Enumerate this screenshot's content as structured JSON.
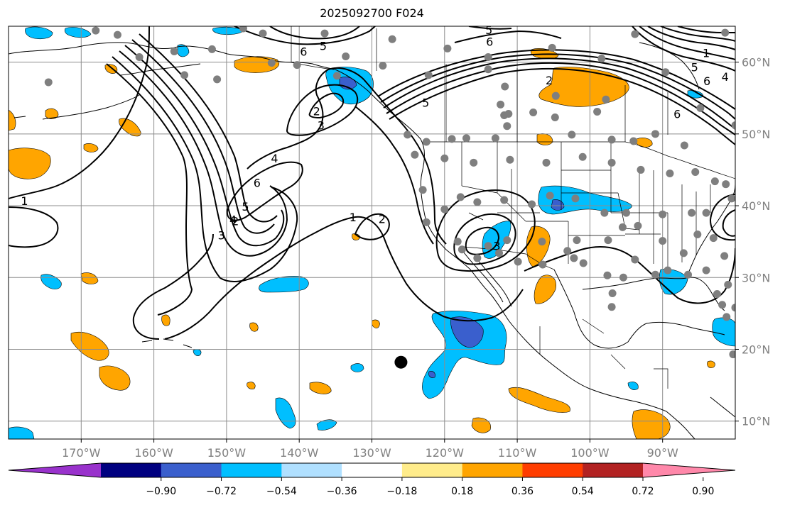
{
  "title": "2025092700 F024",
  "map": {
    "projection": "cylindrical",
    "lon_range": [
      -180,
      -80
    ],
    "lat_range": [
      7.5,
      65
    ],
    "gridlines": true,
    "lon_ticks": [
      {
        "value": -170,
        "label": "170°W"
      },
      {
        "value": -160,
        "label": "160°W"
      },
      {
        "value": -150,
        "label": "150°W"
      },
      {
        "value": -140,
        "label": "140°W"
      },
      {
        "value": -130,
        "label": "130°W"
      },
      {
        "value": -120,
        "label": "120°W"
      },
      {
        "value": -110,
        "label": "110°W"
      },
      {
        "value": -100,
        "label": "100°W"
      },
      {
        "value": -90,
        "label": "90°W"
      }
    ],
    "lat_ticks": [
      {
        "value": 10,
        "label": "10°N"
      },
      {
        "value": 20,
        "label": "20°N"
      },
      {
        "value": 30,
        "label": "30°N"
      },
      {
        "value": 40,
        "label": "40°N"
      },
      {
        "value": 50,
        "label": "50°N"
      },
      {
        "value": 60,
        "label": "60°N"
      }
    ],
    "contour_labels": [
      {
        "text": "1",
        "lon": -177.8,
        "lat": 40.7
      },
      {
        "text": "1",
        "lon": -132.6,
        "lat": 38.4
      },
      {
        "text": "2",
        "lon": -128.6,
        "lat": 38.2
      },
      {
        "text": "2",
        "lon": -148.8,
        "lat": 37.9
      },
      {
        "text": "3",
        "lon": -150.7,
        "lat": 35.9
      },
      {
        "text": "4",
        "lon": -149.1,
        "lat": 38.1
      },
      {
        "text": "5",
        "lon": -147.4,
        "lat": 39.9
      },
      {
        "text": "6",
        "lon": -145.8,
        "lat": 43.2
      },
      {
        "text": "4",
        "lon": -143.4,
        "lat": 46.6
      },
      {
        "text": "3",
        "lon": -137.0,
        "lat": 51.2
      },
      {
        "text": "2",
        "lon": -137.6,
        "lat": 53.2
      },
      {
        "text": "5",
        "lon": -122.6,
        "lat": 54.4
      },
      {
        "text": "3",
        "lon": -112.8,
        "lat": 34.4
      },
      {
        "text": "5",
        "lon": -136.7,
        "lat": 62.3
      },
      {
        "text": "6",
        "lon": -139.4,
        "lat": 61.5
      },
      {
        "text": "5",
        "lon": -113.9,
        "lat": 64.5
      },
      {
        "text": "6",
        "lon": -113.8,
        "lat": 62.9
      },
      {
        "text": "2",
        "lon": -105.6,
        "lat": 57.5
      },
      {
        "text": "1",
        "lon": -84.0,
        "lat": 61.3
      },
      {
        "text": "5",
        "lon": -85.6,
        "lat": 59.3
      },
      {
        "text": "6",
        "lon": -83.9,
        "lat": 57.4
      },
      {
        "text": "6",
        "lon": -88.0,
        "lat": 52.8
      },
      {
        "text": "4",
        "lon": -81.4,
        "lat": 58.0
      }
    ],
    "station_points": [
      [
        -174.5,
        57.2
      ],
      [
        -168.0,
        64.4
      ],
      [
        -165.0,
        63.8
      ],
      [
        -162.0,
        60.7
      ],
      [
        -157.2,
        61.5
      ],
      [
        -155.8,
        58.2
      ],
      [
        -152.0,
        61.8
      ],
      [
        -151.3,
        57.6
      ],
      [
        -147.7,
        64.7
      ],
      [
        -145.0,
        64.0
      ],
      [
        -143.8,
        59.9
      ],
      [
        -140.3,
        59.6
      ],
      [
        -134.8,
        58.1
      ],
      [
        -133.6,
        60.8
      ],
      [
        -128.5,
        59.5
      ],
      [
        -122.2,
        58.2
      ],
      [
        -119.6,
        61.9
      ],
      [
        -114.0,
        60.7
      ],
      [
        -111.7,
        56.6
      ],
      [
        -105.2,
        62.0
      ],
      [
        -93.8,
        63.9
      ],
      [
        -89.6,
        58.6
      ],
      [
        -81.4,
        64.1
      ],
      [
        -98.4,
        60.5
      ],
      [
        -112.3,
        54.1
      ],
      [
        -111.8,
        52.6
      ],
      [
        -111.2,
        52.8
      ],
      [
        -107.8,
        53.0
      ],
      [
        -104.8,
        52.3
      ],
      [
        -102.5,
        49.9
      ],
      [
        -99.0,
        53.1
      ],
      [
        -97.0,
        49.2
      ],
      [
        -94.0,
        49.0
      ],
      [
        -91.0,
        50.0
      ],
      [
        -87.0,
        48.4
      ],
      [
        -84.8,
        53.6
      ],
      [
        -80.0,
        51.2
      ],
      [
        -111.4,
        51.1
      ],
      [
        -113.0,
        49.4
      ],
      [
        -117.0,
        49.4
      ],
      [
        -119.0,
        49.3
      ],
      [
        -122.5,
        48.9
      ],
      [
        -124.1,
        47.1
      ],
      [
        -120.0,
        46.6
      ],
      [
        -116.0,
        46.0
      ],
      [
        -111.0,
        46.4
      ],
      [
        -106.0,
        46.0
      ],
      [
        -101.0,
        46.8
      ],
      [
        -97.0,
        46.0
      ],
      [
        -93.0,
        45.0
      ],
      [
        -89.0,
        44.5
      ],
      [
        -85.5,
        44.7
      ],
      [
        -82.8,
        43.4
      ],
      [
        -81.3,
        43.0
      ],
      [
        -80.5,
        41.0
      ],
      [
        -84.0,
        39.0
      ],
      [
        -86.0,
        39.0
      ],
      [
        -90.0,
        38.8
      ],
      [
        -95.0,
        39.0
      ],
      [
        -98.0,
        39.0
      ],
      [
        -102.0,
        41.0
      ],
      [
        -105.5,
        41.4
      ],
      [
        -108.0,
        40.2
      ],
      [
        -111.8,
        40.8
      ],
      [
        -115.5,
        40.5
      ],
      [
        -117.8,
        41.2
      ],
      [
        -120.0,
        39.5
      ],
      [
        -123.0,
        42.2
      ],
      [
        -122.5,
        37.7
      ],
      [
        -117.6,
        33.9
      ],
      [
        -114.0,
        34.4
      ],
      [
        -111.4,
        35.2
      ],
      [
        -106.6,
        35.0
      ],
      [
        -103.1,
        33.7
      ],
      [
        -101.8,
        35.2
      ],
      [
        -97.5,
        35.2
      ],
      [
        -95.5,
        37.0
      ],
      [
        -93.4,
        37.2
      ],
      [
        -90.0,
        35.1
      ],
      [
        -87.1,
        33.4
      ],
      [
        -85.2,
        36.0
      ],
      [
        -83.0,
        35.5
      ],
      [
        -81.5,
        33.0
      ],
      [
        -84.0,
        31.0
      ],
      [
        -86.5,
        30.4
      ],
      [
        -89.3,
        31.0
      ],
      [
        -91.0,
        30.4
      ],
      [
        -93.8,
        32.5
      ],
      [
        -95.4,
        30.0
      ],
      [
        -97.6,
        30.3
      ],
      [
        -100.9,
        32.0
      ],
      [
        -102.2,
        32.7
      ],
      [
        -106.5,
        31.8
      ],
      [
        -109.9,
        32.2
      ],
      [
        -112.5,
        33.4
      ],
      [
        -115.5,
        32.7
      ],
      [
        -118.2,
        35.0
      ],
      [
        -96.9,
        27.8
      ],
      [
        -97.0,
        25.9
      ],
      [
        -81.0,
        29.0
      ],
      [
        -82.5,
        27.7
      ],
      [
        -81.8,
        26.2
      ],
      [
        -80.0,
        25.8
      ],
      [
        -81.2,
        24.5
      ],
      [
        -80.3,
        19.3
      ],
      [
        -97.8,
        54.8
      ],
      [
        -104.7,
        55.3
      ],
      [
        -114.0,
        59.0
      ],
      [
        -127.2,
        63.2
      ],
      [
        -136.5,
        64.0
      ],
      [
        -125.1,
        49.9
      ]
    ],
    "marked_point": {
      "lon": -126.0,
      "lat": 18.2
    }
  },
  "colorbar": {
    "colors": [
      "#9932cc",
      "#000080",
      "#3a5fcd",
      "#00bfff",
      "#b0e0ff",
      "#ffffff",
      "#ffec8b",
      "#ffa500",
      "#ff3d00",
      "#b22222",
      "#ff88aa"
    ],
    "tick_labels": [
      "−0.90",
      "−0.72",
      "−0.54",
      "−0.36",
      "−0.18",
      "0.18",
      "0.36",
      "0.54",
      "0.72",
      "0.90"
    ],
    "extend": "both"
  }
}
